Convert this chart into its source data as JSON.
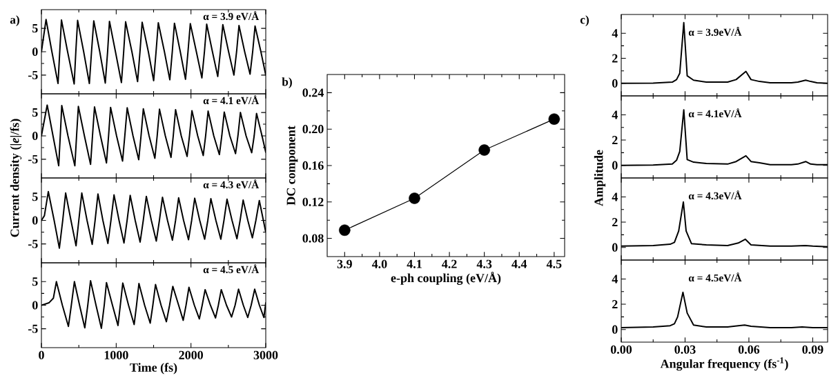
{
  "chart_data": [
    {
      "type": "line",
      "title": "a)",
      "xlim": [
        0,
        3000
      ],
      "ylim": [
        -9,
        9
      ],
      "xticks": [
        0,
        1000,
        2000,
        3000
      ],
      "yticks": [
        -5,
        0,
        5
      ],
      "tick_labels": "y",
      "series": [
        {
          "name": "α = 3.9 eV/Å",
          "color": "#000000",
          "x": [
            0,
            62,
            140,
            222,
            245,
            268,
            350,
            438,
            460,
            484,
            565,
            641,
            670,
            700,
            780,
            854,
            885,
            910,
            990,
            1070,
            1100,
            1126,
            1210,
            1286,
            1318,
            1347,
            1430,
            1501,
            1533,
            1563,
            1645,
            1717,
            1750,
            1779,
            1857,
            1927,
            1960,
            1991,
            2072,
            2146,
            2180,
            2210,
            2287,
            2358,
            2393,
            2426,
            2503,
            2574,
            2610,
            2642,
            2718,
            2790,
            2825,
            2857,
            2935,
            3000
          ],
          "values": [
            0,
            6.9,
            0,
            -6.8,
            0,
            6.8,
            0,
            -6.9,
            0,
            6.7,
            0,
            -6.8,
            0,
            6.6,
            0,
            -6.7,
            0,
            6.5,
            0,
            -6.6,
            0,
            6.4,
            0,
            -6.4,
            0,
            6.3,
            0,
            -6.2,
            0,
            6.2,
            0,
            -6.0,
            0,
            6.1,
            0,
            -5.9,
            0,
            6.0,
            0,
            -5.6,
            0,
            5.9,
            0,
            -5.3,
            0,
            5.8,
            0,
            -5.0,
            0,
            5.6,
            0,
            -4.8,
            0,
            5.5,
            0,
            -5.0
          ]
        }
      ]
    },
    {
      "type": "line",
      "ylabel": "Current density (|*e*|/fs)",
      "xlim": [
        0,
        3000
      ],
      "ylim": [
        -9,
        9
      ],
      "xticks": [
        0,
        1000,
        2000,
        3000
      ],
      "yticks": [
        -5,
        0,
        5
      ],
      "tick_labels": "y",
      "series": [
        {
          "name": "α = 4.1 eV/Å",
          "color": "#000000",
          "x": [
            0,
            77,
            155,
            231,
            252,
            272,
            355,
            447,
            470,
            494,
            575,
            657,
            683,
            710,
            790,
            870,
            898,
            925,
            1005,
            1085,
            1115,
            1147,
            1225,
            1301,
            1332,
            1363,
            1440,
            1517,
            1548,
            1579,
            1657,
            1733,
            1763,
            1794,
            1870,
            1948,
            1980,
            2013,
            2090,
            2164,
            2196,
            2229,
            2305,
            2380,
            2412,
            2445,
            2520,
            2596,
            2628,
            2661,
            2737,
            2812,
            2845,
            2877,
            2950,
            3000
          ],
          "values": [
            0,
            6.6,
            0,
            -6.4,
            0,
            6.5,
            0,
            -6.4,
            0,
            6.3,
            0,
            -6.1,
            0,
            6.2,
            0,
            -5.8,
            0,
            6.1,
            0,
            -5.4,
            0,
            6.0,
            0,
            -5.1,
            0,
            5.8,
            0,
            -4.8,
            0,
            5.7,
            0,
            -4.6,
            0,
            5.6,
            0,
            -4.4,
            0,
            5.4,
            0,
            -4.2,
            0,
            5.3,
            0,
            -4.0,
            0,
            5.1,
            0,
            -3.8,
            0,
            5.0,
            0,
            -3.6,
            0,
            4.8,
            0,
            -3.5
          ]
        }
      ]
    },
    {
      "type": "line",
      "xlim": [
        0,
        3000
      ],
      "ylim": [
        -9,
        9
      ],
      "xticks": [
        0,
        1000,
        2000,
        3000
      ],
      "yticks": [
        -5,
        0,
        5
      ],
      "tick_labels": "y",
      "series": [
        {
          "name": "α = 4.3 eV/Å",
          "color": "#000000",
          "x": [
            0,
            40,
            92,
            170,
            240,
            285,
            324,
            395,
            463,
            500,
            540,
            610,
            679,
            718,
            756,
            822,
            889,
            930,
            971,
            1038,
            1104,
            1146,
            1187,
            1254,
            1320,
            1362,
            1403,
            1470,
            1536,
            1578,
            1619,
            1686,
            1752,
            1794,
            1835,
            1901,
            1967,
            2009,
            2050,
            2117,
            2183,
            2225,
            2266,
            2333,
            2399,
            2441,
            2482,
            2549,
            2615,
            2657,
            2698,
            2760,
            2821,
            2868,
            2914,
            3000
          ],
          "values": [
            0,
            1.0,
            6.1,
            0,
            -5.9,
            0,
            5.8,
            0,
            -5.4,
            0,
            5.8,
            0,
            -5.1,
            0,
            5.6,
            0,
            -4.9,
            0,
            5.4,
            0,
            -4.8,
            0,
            5.3,
            0,
            -4.6,
            0,
            5.1,
            0,
            -4.4,
            0,
            4.9,
            0,
            -4.2,
            0,
            4.8,
            0,
            -4.1,
            0,
            4.7,
            0,
            -4.0,
            0,
            4.6,
            0,
            -4.0,
            0,
            4.5,
            0,
            -3.9,
            0,
            4.3,
            0,
            -3.7,
            0,
            4.2,
            -2.5
          ]
        }
      ]
    },
    {
      "type": "line",
      "xlabel": "Time (fs)",
      "xlim": [
        0,
        3000
      ],
      "ylim": [
        -9,
        9
      ],
      "xticks": [
        0,
        1000,
        2000,
        3000
      ],
      "yticks": [
        -5,
        0,
        5
      ],
      "series": [
        {
          "name": "α = 4.5 eV/Å",
          "color": "#000000",
          "x": [
            0,
            100,
            160,
            200,
            280,
            361,
            400,
            441,
            510,
            580,
            620,
            657,
            730,
            802,
            840,
            870,
            950,
            1024,
            1055,
            1088,
            1165,
            1240,
            1272,
            1304,
            1380,
            1455,
            1490,
            1526,
            1600,
            1671,
            1714,
            1757,
            1835,
            1896,
            1934,
            1973,
            2045,
            2112,
            2150,
            2189,
            2260,
            2328,
            2366,
            2405,
            2475,
            2543,
            2590,
            2636,
            2700,
            2759,
            2805,
            2852,
            2915,
            2975,
            3000
          ],
          "values": [
            0,
            0.5,
            1.5,
            5.0,
            0,
            -4.5,
            0,
            5.0,
            0,
            -4.8,
            0,
            5.2,
            0,
            -4.9,
            0,
            4.8,
            0,
            -4.3,
            0,
            4.7,
            0,
            -4.1,
            0,
            4.6,
            0,
            -3.8,
            0,
            4.4,
            0,
            -3.5,
            0,
            4.0,
            0,
            -3.2,
            0,
            3.8,
            0,
            -2.9,
            0,
            3.3,
            0,
            -2.7,
            0,
            3.3,
            0,
            -2.5,
            0,
            3.4,
            0,
            -2.6,
            0,
            3.4,
            0,
            -2.6,
            0.5
          ]
        }
      ]
    },
    {
      "type": "line",
      "title": "b)",
      "xlabel": "e-ph coupling (eV/Å)",
      "ylabel": "DC component",
      "marker": "circle",
      "xlim": [
        3.85,
        4.53
      ],
      "ylim": [
        0.06,
        0.26
      ],
      "xticks": [
        {
          "value": 3.9,
          "label": "3.9"
        },
        {
          "value": 4.0,
          "label": "4.0"
        },
        {
          "value": 4.1,
          "label": "4.1"
        },
        {
          "value": 4.2,
          "label": "4.2"
        },
        {
          "value": 4.3,
          "label": "4.3"
        },
        {
          "value": 4.4,
          "label": "4.4"
        },
        {
          "value": 4.5,
          "label": "4.5"
        }
      ],
      "yticks": [
        {
          "value": 0.08,
          "label": "0.08"
        },
        {
          "value": 0.12,
          "label": "0.12"
        },
        {
          "value": 0.16,
          "label": "0.16"
        },
        {
          "value": 0.2,
          "label": "0.20"
        },
        {
          "value": 0.24,
          "label": "0.24"
        }
      ],
      "x": [
        3.9,
        4.1,
        4.3,
        4.5
      ],
      "series": [
        {
          "color": "#000000",
          "values": [
            0.089,
            0.124,
            0.177,
            0.211
          ]
        }
      ]
    },
    {
      "type": "line",
      "title": "c)",
      "xlim": [
        0,
        0.097
      ],
      "ylim": [
        -1,
        5.5
      ],
      "xticks": [
        0,
        0.03,
        0.06,
        0.09
      ],
      "yticks": [
        0,
        2,
        4
      ],
      "tick_labels": "y",
      "series": [
        {
          "name": "α = 3.9eV/Å",
          "color": "#000000",
          "x": [
            0,
            0.015,
            0.024,
            0.026,
            0.0275,
            0.0294,
            0.031,
            0.034,
            0.04,
            0.05,
            0.054,
            0.0586,
            0.061,
            0.065,
            0.07,
            0.08,
            0.083,
            0.0867,
            0.089,
            0.092,
            0.097
          ],
          "values": [
            0,
            0.02,
            0.1,
            0.3,
            0.8,
            4.85,
            0.6,
            0.25,
            0.1,
            0.1,
            0.3,
            0.95,
            0.3,
            0.15,
            0.05,
            0.05,
            0.1,
            0.25,
            0.15,
            0.05,
            0
          ]
        }
      ]
    },
    {
      "type": "line",
      "ylabel": "Amplitude",
      "xlim": [
        0,
        0.097
      ],
      "ylim": [
        -1,
        5.5
      ],
      "xticks": [
        0,
        0.03,
        0.06,
        0.09
      ],
      "yticks": [
        0,
        2,
        4
      ],
      "tick_labels": "y",
      "series": [
        {
          "name": "α = 4.1eV/Å",
          "color": "#000000",
          "x": [
            0,
            0.015,
            0.024,
            0.026,
            0.0275,
            0.0294,
            0.031,
            0.034,
            0.04,
            0.05,
            0.054,
            0.0586,
            0.061,
            0.065,
            0.07,
            0.08,
            0.083,
            0.0867,
            0.089,
            0.092,
            0.097
          ],
          "values": [
            0,
            0.02,
            0.1,
            0.4,
            1.1,
            4.4,
            0.45,
            0.25,
            0.15,
            0.1,
            0.3,
            0.75,
            0.3,
            0.2,
            0.05,
            0.05,
            0.1,
            0.3,
            0.1,
            0.05,
            0.05
          ]
        }
      ]
    },
    {
      "type": "line",
      "xlim": [
        0,
        0.097
      ],
      "ylim": [
        -1,
        5.5
      ],
      "xticks": [
        0,
        0.03,
        0.06,
        0.09
      ],
      "yticks": [
        0,
        2,
        4
      ],
      "tick_labels": "y",
      "series": [
        {
          "name": "α = 4.3eV/Å",
          "color": "#000000",
          "x": [
            0,
            0.015,
            0.023,
            0.025,
            0.027,
            0.0292,
            0.0305,
            0.033,
            0.04,
            0.05,
            0.055,
            0.0583,
            0.061,
            0.07,
            0.08,
            0.0865,
            0.09,
            0.097
          ],
          "values": [
            0.1,
            0.15,
            0.25,
            0.4,
            1.3,
            3.6,
            1.3,
            0.3,
            0.2,
            0.15,
            0.35,
            0.65,
            0.2,
            0.1,
            0.1,
            0.15,
            0.1,
            0.05
          ]
        }
      ]
    },
    {
      "type": "line",
      "xlabel": "Angular frequency (fs$^{-1}$)",
      "xlim": [
        0,
        0.097
      ],
      "ylim": [
        -1,
        5.5
      ],
      "xticks": [
        {
          "value": 0,
          "label": "0.00"
        },
        {
          "value": 0.03,
          "label": "0.03"
        },
        {
          "value": 0.06,
          "label": "0.06"
        },
        {
          "value": 0.09,
          "label": "0.09"
        }
      ],
      "yticks": [
        0,
        2,
        4
      ],
      "series": [
        {
          "name": "α = 4.5eV/Å",
          "color": "#000000",
          "x": [
            0,
            0.015,
            0.023,
            0.025,
            0.0265,
            0.029,
            0.031,
            0.034,
            0.04,
            0.05,
            0.055,
            0.058,
            0.061,
            0.07,
            0.08,
            0.085,
            0.09,
            0.097
          ],
          "values": [
            0.15,
            0.2,
            0.3,
            0.45,
            1.0,
            2.95,
            1.3,
            0.35,
            0.2,
            0.2,
            0.3,
            0.35,
            0.25,
            0.15,
            0.15,
            0.2,
            0.15,
            0.15
          ]
        }
      ]
    }
  ]
}
